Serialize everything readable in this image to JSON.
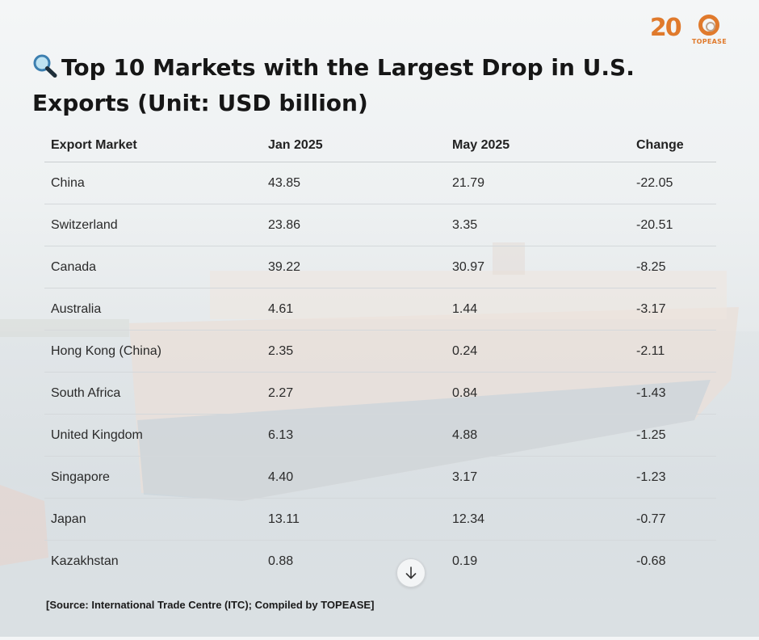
{
  "title": "Top 10 Markets with the Largest Drop in U.S. Exports (Unit: USD billion)",
  "source": "[Source: International Trade Centre (ITC); Compiled by TOPEASE]",
  "logos": {
    "anniversary_number": "20",
    "brand": "TOPEASE"
  },
  "icons": {
    "title_icon": "magnifying-glass-icon",
    "scroll_icon": "arrow-down-icon"
  },
  "colors": {
    "brand_orange": "#e07a2c",
    "text": "#1c1c1c"
  },
  "chart_data": {
    "type": "table",
    "title": "Top 10 Markets with the Largest Drop in U.S. Exports (Unit: USD billion)",
    "columns": [
      "Export Market",
      "Jan 2025",
      "May 2025",
      "Change"
    ],
    "rows": [
      [
        "China",
        "43.85",
        "21.79",
        "-22.05"
      ],
      [
        "Switzerland",
        "23.86",
        "3.35",
        "-20.51"
      ],
      [
        "Canada",
        "39.22",
        "30.97",
        "-8.25"
      ],
      [
        "Australia",
        "4.61",
        "1.44",
        "-3.17"
      ],
      [
        "Hong Kong (China)",
        "2.35",
        "0.24",
        "-2.11"
      ],
      [
        "South Africa",
        "2.27",
        "0.84",
        "-1.43"
      ],
      [
        "United Kingdom",
        "6.13",
        "4.88",
        "-1.25"
      ],
      [
        "Singapore",
        "4.40",
        "3.17",
        "-1.23"
      ],
      [
        "Japan",
        "13.11",
        "12.34",
        "-0.77"
      ],
      [
        "Kazakhstan",
        "0.88",
        "0.19",
        "-0.68"
      ]
    ]
  }
}
